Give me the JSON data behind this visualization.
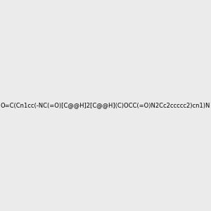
{
  "smiles": "O=C(Cn1cc(-NC(=O)[C@@H]2[C@@H](C)OCC(=O)N2Cc2ccccc2)cn1)N",
  "title": "",
  "background_color": "#ebebeb",
  "figsize": [
    3.0,
    3.0
  ],
  "dpi": 100
}
